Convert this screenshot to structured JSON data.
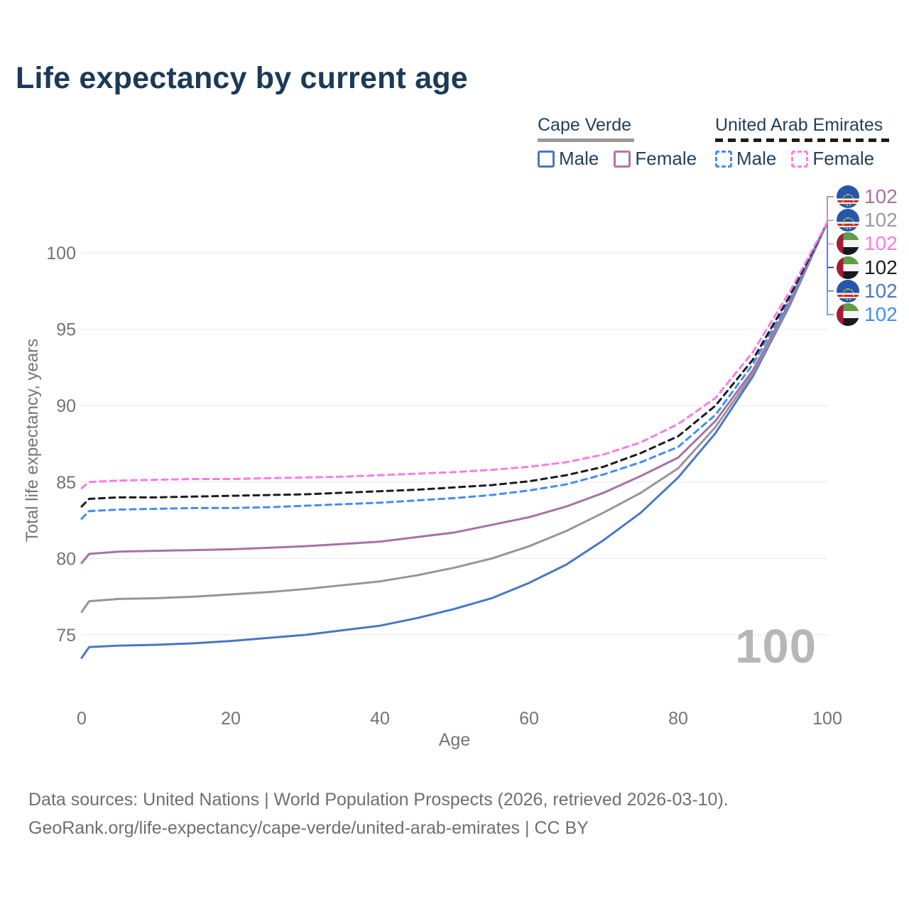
{
  "title": "Life expectancy by current age",
  "watermark": "100",
  "legend": {
    "groups": [
      {
        "label": "Cape Verde",
        "line_style": "solid",
        "underline_color": "#9a9a9a",
        "items": [
          {
            "label": "Male",
            "color": "#4a77c4",
            "dashed": false
          },
          {
            "label": "Female",
            "color": "#b273ae",
            "dashed": false
          }
        ]
      },
      {
        "label": "United Arab Emirates",
        "line_style": "dashed",
        "underline_color": "#1c1c1c",
        "items": [
          {
            "label": "Male",
            "color": "#3f8df5",
            "dashed": true
          },
          {
            "label": "Female",
            "color": "#fc80e8",
            "dashed": true
          }
        ]
      }
    ]
  },
  "chart_data": {
    "type": "line",
    "title": "Life expectancy by current age",
    "xlabel": "Age",
    "ylabel": "Total life expectancy, years",
    "x_ticks": [
      0,
      20,
      40,
      60,
      80,
      100
    ],
    "y_ticks": [
      75,
      80,
      85,
      90,
      95,
      100
    ],
    "xlim": [
      0,
      100
    ],
    "ylim": [
      73,
      102.5
    ],
    "grid": "horizontal",
    "legend_position": "top-right",
    "ages": [
      0,
      1,
      5,
      10,
      15,
      20,
      25,
      30,
      35,
      40,
      45,
      50,
      55,
      60,
      65,
      70,
      75,
      80,
      85,
      90,
      95,
      100
    ],
    "series": [
      {
        "id": "cape-verde-male",
        "name": "Cape Verde Male",
        "color": "#4a77c4",
        "dashed": false,
        "values": [
          73.5,
          74.2,
          74.3,
          74.35,
          74.45,
          74.6,
          74.8,
          75.0,
          75.3,
          75.6,
          76.1,
          76.7,
          77.4,
          78.4,
          79.6,
          81.2,
          83.0,
          85.3,
          88.2,
          91.9,
          96.6,
          102
        ]
      },
      {
        "id": "cape-verde-both-sexes",
        "name": "Cape Verde (both sexes)",
        "color": "#969696",
        "dashed": false,
        "values": [
          76.5,
          77.2,
          77.35,
          77.4,
          77.5,
          77.65,
          77.8,
          78.0,
          78.25,
          78.5,
          78.9,
          79.4,
          80.0,
          80.8,
          81.8,
          83.0,
          84.3,
          85.9,
          88.6,
          92.1,
          96.7,
          102
        ]
      },
      {
        "id": "cape-verde-female",
        "name": "Cape Verde Female",
        "color": "#a871a5",
        "dashed": false,
        "values": [
          79.7,
          80.3,
          80.45,
          80.5,
          80.55,
          80.6,
          80.7,
          80.8,
          80.95,
          81.1,
          81.4,
          81.7,
          82.2,
          82.7,
          83.4,
          84.3,
          85.4,
          86.6,
          89.0,
          92.3,
          96.8,
          102
        ]
      },
      {
        "id": "uae-male",
        "name": "United Arab Emirates Male",
        "color": "#418ef5",
        "dashed": true,
        "values": [
          82.6,
          83.1,
          83.2,
          83.25,
          83.3,
          83.3,
          83.35,
          83.45,
          83.55,
          83.65,
          83.8,
          83.95,
          84.15,
          84.45,
          84.85,
          85.5,
          86.3,
          87.3,
          89.4,
          92.7,
          97.0,
          102
        ]
      },
      {
        "id": "uae-both-sexes",
        "name": "United Arab Emirates (both sexes)",
        "color": "#1c1c1c",
        "dashed": true,
        "values": [
          83.4,
          83.9,
          84.0,
          84.0,
          84.05,
          84.1,
          84.15,
          84.2,
          84.3,
          84.4,
          84.5,
          84.65,
          84.8,
          85.05,
          85.45,
          86.0,
          86.9,
          88.0,
          90.0,
          93.0,
          97.2,
          102
        ]
      },
      {
        "id": "uae-female",
        "name": "United Arab Emirates Female",
        "color": "#fb7be6",
        "dashed": true,
        "values": [
          84.6,
          85.0,
          85.1,
          85.15,
          85.2,
          85.2,
          85.25,
          85.3,
          85.35,
          85.45,
          85.55,
          85.65,
          85.8,
          86.0,
          86.3,
          86.8,
          87.6,
          88.8,
          90.5,
          93.5,
          97.5,
          102
        ]
      }
    ],
    "end_labels": [
      {
        "value": "102",
        "flag": "cape-verde",
        "series": "Cape Verde Female",
        "color": "#a871a5"
      },
      {
        "value": "102",
        "flag": "cape-verde",
        "series": "Cape Verde (both sexes)",
        "color": "#9b9b9b"
      },
      {
        "value": "102",
        "flag": "united-arab-emirates",
        "series": "United Arab Emirates Female",
        "color": "#fb7be6"
      },
      {
        "value": "102",
        "flag": "united-arab-emirates",
        "series": "United Arab Emirates (both sexes)",
        "color": "#1c1c1c"
      },
      {
        "value": "102",
        "flag": "cape-verde",
        "series": "Cape Verde Male",
        "color": "#4a77c4"
      },
      {
        "value": "102",
        "flag": "united-arab-emirates",
        "series": "United Arab Emirates Male",
        "color": "#418ef5"
      }
    ]
  },
  "footer": {
    "line1": "Data sources: United Nations | World Population Prospects (2026, retrieved 2026-03-10).",
    "line2": "GeoRank.org/life-expectancy/cape-verde/united-arab-emirates | CC BY"
  }
}
